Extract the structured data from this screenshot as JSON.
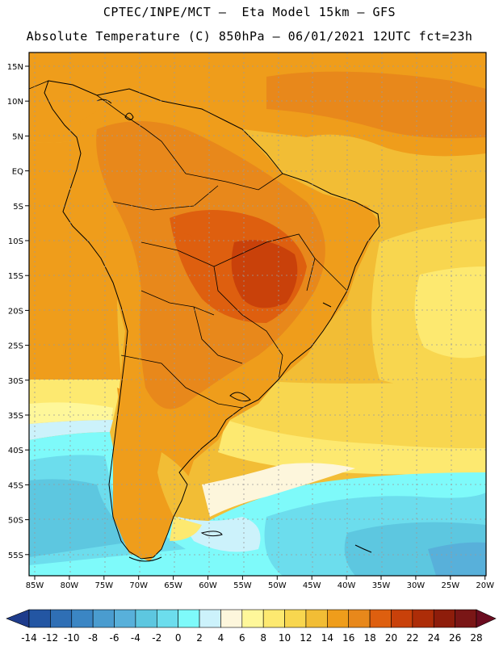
{
  "header": {
    "line1": "CPTEC/INPE/MCT –  Eta Model 15km – GFS",
    "line2": "Absolute Temperature (C) 850hPa – 06/01/2021 12UTC fct=23h"
  },
  "map": {
    "lat_labels": [
      "15N",
      "10N",
      "5N",
      "EQ",
      "5S",
      "10S",
      "15S",
      "20S",
      "25S",
      "30S",
      "35S",
      "40S",
      "45S",
      "50S",
      "55S"
    ],
    "lon_labels": [
      "85W",
      "80W",
      "75W",
      "70W",
      "65W",
      "60W",
      "55W",
      "50W",
      "45W",
      "40W",
      "35W",
      "30W",
      "25W",
      "20W"
    ]
  },
  "colorbar": {
    "colors": [
      "#1e3c8c",
      "#2356a3",
      "#2f6fb5",
      "#3b86c4",
      "#4a9ccf",
      "#58b0da",
      "#5dc7e0",
      "#6cdded",
      "#7efafa",
      "#ccf2fb",
      "#fdf6dc",
      "#fef79a",
      "#fde970",
      "#f8d64f",
      "#f2bd35",
      "#ef9d1b",
      "#e8881b",
      "#de5f0f",
      "#c9410a",
      "#ad2d08",
      "#8e1d0b",
      "#7a1616",
      "#6b0c20"
    ],
    "labels": [
      "-14",
      "-12",
      "-10",
      "-8",
      "-6",
      "-4",
      "-2",
      "0",
      "2",
      "4",
      "6",
      "8",
      "10",
      "12",
      "14",
      "16",
      "18",
      "20",
      "22",
      "24",
      "26",
      "28"
    ]
  }
}
